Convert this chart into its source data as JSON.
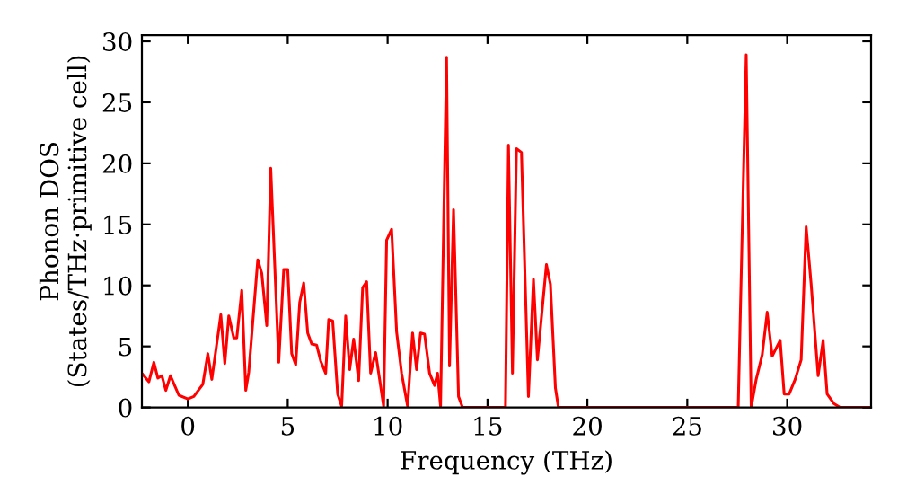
{
  "chart_data": {
    "type": "line",
    "xlabel": "Frequency (THz)",
    "ylabel": "Phonon DOS\n(States/THz·primitive cell)",
    "xlim": [
      -2.3,
      34.2
    ],
    "ylim": [
      0,
      30.5
    ],
    "xticks": [
      0,
      5,
      10,
      15,
      20,
      25,
      30
    ],
    "yticks": [
      0,
      5,
      10,
      15,
      20,
      25,
      30
    ],
    "grid": false,
    "legend": false,
    "marker": "none",
    "line_style": "solid",
    "series": [
      {
        "color": "#ff0000",
        "x": [
          -2.25,
          -1.95,
          -1.7,
          -1.5,
          -1.3,
          -1.1,
          -0.87,
          -0.45,
          0,
          0.3,
          0.75,
          1.0,
          1.2,
          1.65,
          1.85,
          2.05,
          2.3,
          2.45,
          2.7,
          2.9,
          3.05,
          3.5,
          3.7,
          3.95,
          4.15,
          4.55,
          4.8,
          5.0,
          5.2,
          5.4,
          5.6,
          5.8,
          6.0,
          6.2,
          6.45,
          6.65,
          6.9,
          7.05,
          7.25,
          7.5,
          7.7,
          7.9,
          8.1,
          8.3,
          8.55,
          8.75,
          8.95,
          9.15,
          9.4,
          9.6,
          9.8,
          9.95,
          10.2,
          10.45,
          10.7,
          11.0,
          11.25,
          11.45,
          11.65,
          11.85,
          12.1,
          12.35,
          12.5,
          12.65,
          12.95,
          13.1,
          13.3,
          13.55,
          13.75,
          15.9,
          16.05,
          16.25,
          16.45,
          16.7,
          17.05,
          17.3,
          17.5,
          17.95,
          18.15,
          18.4,
          18.55,
          27.55,
          27.95,
          28.2,
          28.45,
          28.75,
          29.0,
          29.25,
          29.65,
          29.85,
          30.1,
          30.4,
          30.7,
          30.95,
          31.2,
          31.55,
          31.8,
          32.0,
          32.35,
          32.65,
          34.1
        ],
        "values": [
          2.7,
          2.1,
          3.7,
          2.4,
          2.6,
          1.4,
          2.6,
          1.0,
          0.7,
          0.9,
          1.9,
          4.4,
          2.3,
          7.6,
          3.6,
          7.5,
          5.7,
          5.7,
          9.6,
          1.4,
          2.9,
          12.1,
          11.0,
          6.7,
          19.6,
          3.7,
          11.3,
          11.3,
          4.4,
          3.5,
          8.6,
          10.2,
          6.1,
          5.2,
          5.1,
          3.8,
          2.8,
          7.2,
          7.1,
          1.1,
          0.1,
          7.5,
          3.1,
          5.6,
          2.2,
          9.8,
          10.3,
          2.8,
          4.5,
          2.3,
          0.1,
          13.7,
          14.6,
          6.2,
          2.8,
          0.1,
          6.1,
          3.1,
          6.1,
          6.0,
          2.8,
          1.8,
          2.8,
          0.1,
          28.7,
          3.4,
          16.2,
          0.9,
          0,
          0,
          21.5,
          2.8,
          21.2,
          20.9,
          0.9,
          10.5,
          3.9,
          11.7,
          10.1,
          1.6,
          0,
          0,
          28.9,
          0,
          2.3,
          4.3,
          7.8,
          4.2,
          5.5,
          1.1,
          1.1,
          2.3,
          3.9,
          14.8,
          10.1,
          2.6,
          5.5,
          1.1,
          0.3,
          0,
          0
        ]
      }
    ]
  }
}
